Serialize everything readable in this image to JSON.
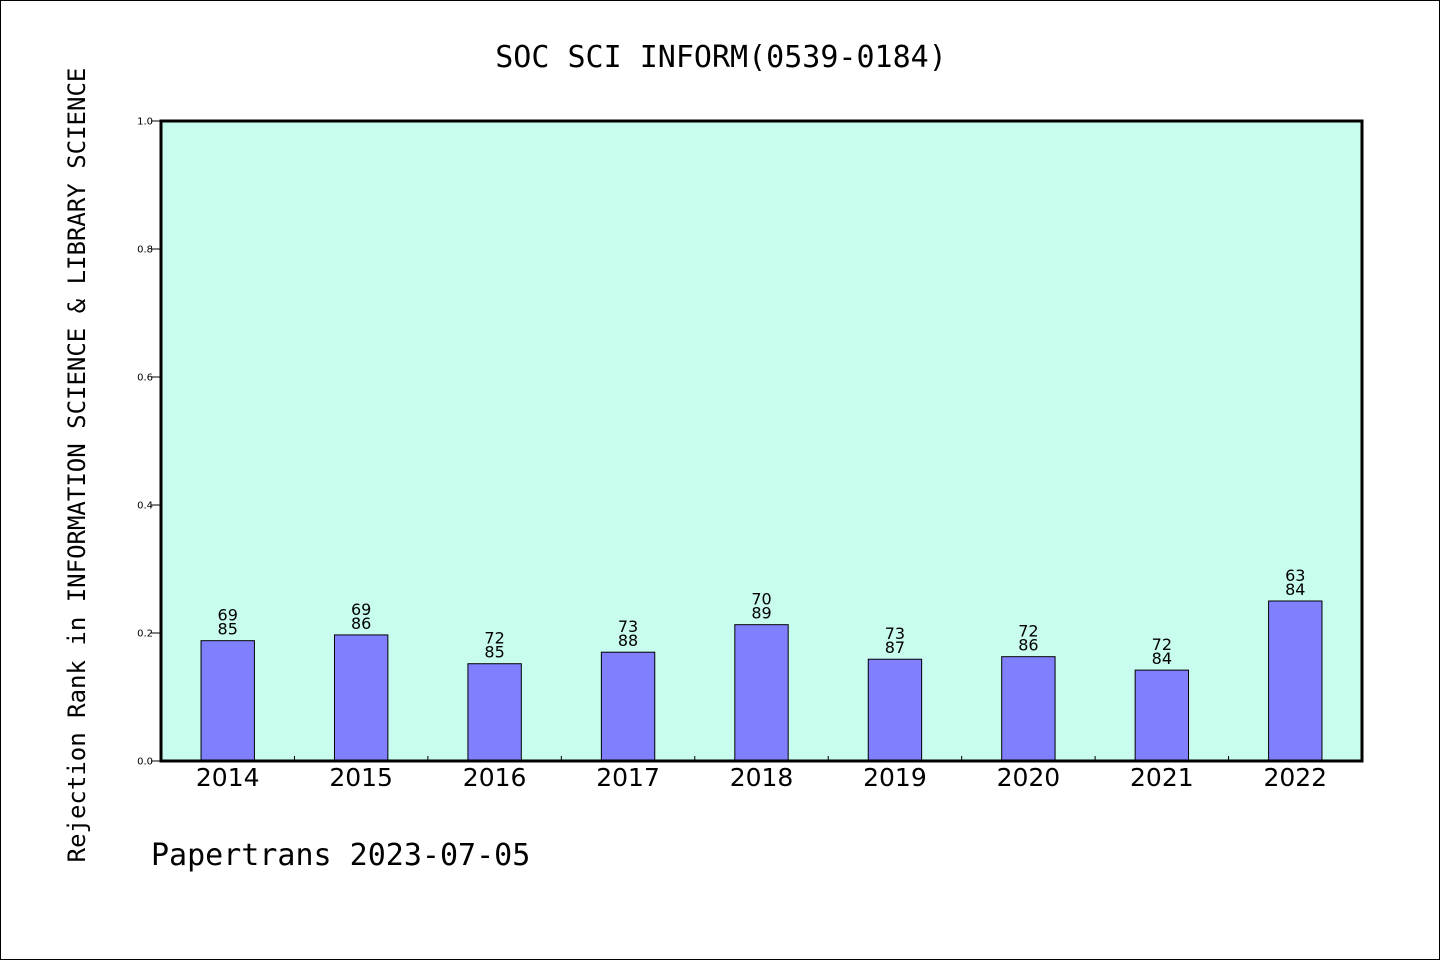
{
  "chart_data": {
    "type": "bar",
    "title": "SOC SCI INFORM(0539-0184)",
    "xlabel": "",
    "ylabel": "Rejection Rank in INFORMATION SCIENCE & LIBRARY SCIENCE",
    "categories": [
      "2014",
      "2015",
      "2016",
      "2017",
      "2018",
      "2019",
      "2020",
      "2021",
      "2022"
    ],
    "values": [
      0.188,
      0.197,
      0.152,
      0.17,
      0.213,
      0.159,
      0.163,
      0.142,
      0.25
    ],
    "bar_labels_top": [
      "69",
      "69",
      "72",
      "73",
      "70",
      "73",
      "72",
      "72",
      "63"
    ],
    "bar_labels_bottom": [
      "85",
      "86",
      "85",
      "88",
      "89",
      "87",
      "86",
      "84",
      "84"
    ],
    "ylim": [
      0,
      1.0
    ],
    "yticks": [
      "0.0",
      "0.2",
      "0.4",
      "0.6",
      "0.8",
      "1.0"
    ],
    "grid": false,
    "colors": {
      "plot_background": "#c8fcee",
      "bar_fill": "#8080ff",
      "bar_edge": "#000000"
    }
  },
  "footer": {
    "text": "Papertrans 2023-07-05"
  }
}
